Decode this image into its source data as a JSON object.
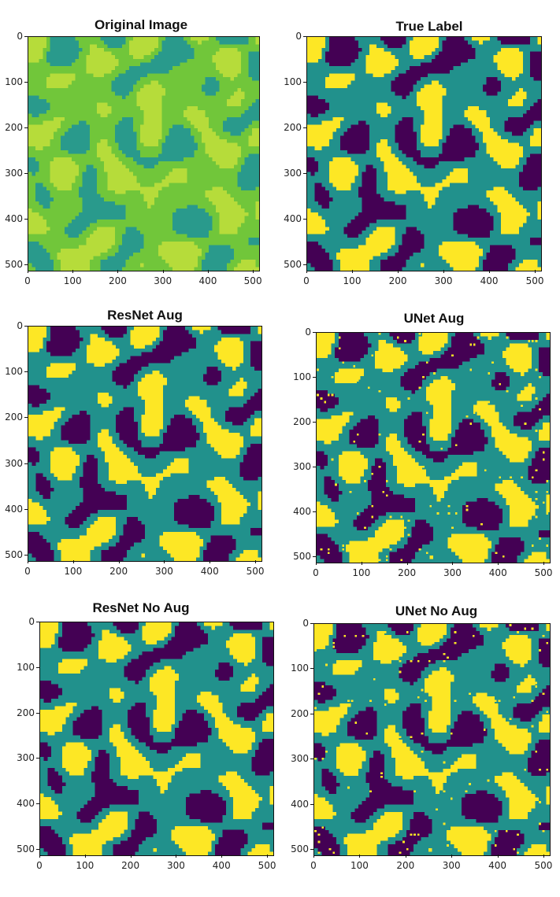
{
  "chart_data": [
    {
      "type": "heatmap",
      "title": "Original Image",
      "colormap": "viridis",
      "palette": [
        "#b6dc3a",
        "#71c63a",
        "#299a8c"
      ],
      "xticks": [
        0,
        100,
        200,
        300,
        400,
        500
      ],
      "yticks": [
        0,
        100,
        200,
        300,
        400,
        500
      ],
      "xlim": [
        0,
        512
      ],
      "ylim": [
        512,
        0
      ],
      "noise": 0
    },
    {
      "type": "heatmap",
      "title": "True Label",
      "colormap": "viridis",
      "palette": [
        "#440154",
        "#21918c",
        "#fde725"
      ],
      "xticks": [
        0,
        100,
        200,
        300,
        400,
        500
      ],
      "yticks": [
        0,
        100,
        200,
        300,
        400,
        500
      ],
      "xlim": [
        0,
        512
      ],
      "ylim": [
        512,
        0
      ],
      "noise": 0
    },
    {
      "type": "heatmap",
      "title": "ResNet Aug",
      "colormap": "viridis",
      "palette": [
        "#440154",
        "#21918c",
        "#fde725"
      ],
      "xticks": [
        0,
        100,
        200,
        300,
        400,
        500
      ],
      "yticks": [
        0,
        100,
        200,
        300,
        400,
        500
      ],
      "xlim": [
        0,
        512
      ],
      "ylim": [
        512,
        0
      ],
      "noise": 0
    },
    {
      "type": "heatmap",
      "title": "UNet Aug",
      "colormap": "viridis",
      "palette": [
        "#440154",
        "#21918c",
        "#fde725"
      ],
      "xticks": [
        0,
        100,
        200,
        300,
        400,
        500
      ],
      "yticks": [
        0,
        100,
        200,
        300,
        400,
        500
      ],
      "xlim": [
        0,
        512
      ],
      "ylim": [
        512,
        0
      ],
      "noise": 1
    },
    {
      "type": "heatmap",
      "title": "ResNet No Aug",
      "colormap": "viridis",
      "palette": [
        "#440154",
        "#21918c",
        "#fde725"
      ],
      "xticks": [
        0,
        100,
        200,
        300,
        400,
        500
      ],
      "yticks": [
        0,
        100,
        200,
        300,
        400,
        500
      ],
      "xlim": [
        0,
        512
      ],
      "ylim": [
        512,
        0
      ],
      "noise": 0
    },
    {
      "type": "heatmap",
      "title": "UNet No Aug",
      "colormap": "viridis",
      "palette": [
        "#440154",
        "#21918c",
        "#fde725"
      ],
      "xticks": [
        0,
        100,
        200,
        300,
        400,
        500
      ],
      "yticks": [
        0,
        100,
        200,
        300,
        400,
        500
      ],
      "xlim": [
        0,
        512
      ],
      "ylim": [
        512,
        0
      ],
      "noise": 1
    }
  ]
}
